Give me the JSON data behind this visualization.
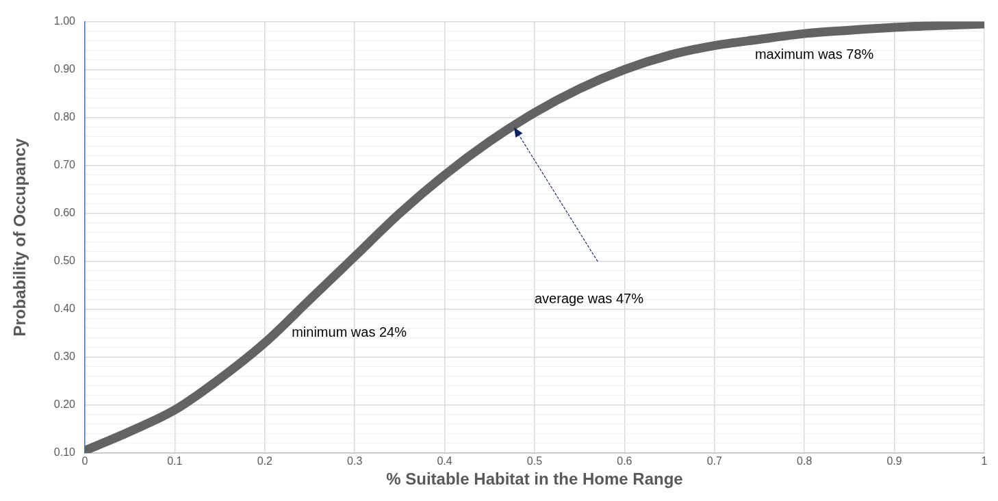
{
  "chart_data": {
    "type": "line",
    "xlabel": "% Suitable Habitat in the Home Range",
    "ylabel": "Probability of Occupancy",
    "x": [
      0,
      0.05,
      0.1,
      0.15,
      0.2,
      0.25,
      0.3,
      0.35,
      0.4,
      0.45,
      0.5,
      0.55,
      0.6,
      0.65,
      0.7,
      0.75,
      0.8,
      0.85,
      0.9,
      0.95,
      1
    ],
    "series": [
      {
        "color": "#636363",
        "values": [
          0.105,
          0.145,
          0.19,
          0.255,
          0.33,
          0.42,
          0.51,
          0.6,
          0.68,
          0.75,
          0.81,
          0.86,
          0.9,
          0.93,
          0.95,
          0.963,
          0.975,
          0.982,
          0.988,
          0.992,
          0.995
        ]
      }
    ],
    "xlim": [
      0,
      1
    ],
    "xticks": [
      0,
      0.1,
      0.2,
      0.3,
      0.4,
      0.5,
      0.6,
      0.7,
      0.8,
      0.9,
      1
    ],
    "ylim": [
      0.1,
      1
    ],
    "yticks": [
      {
        "value": 0.1,
        "label": "0.10"
      },
      {
        "value": 0.12,
        "label": null
      },
      {
        "value": 0.14,
        "label": null
      },
      {
        "value": 0.16,
        "label": null
      },
      {
        "value": 0.18,
        "label": null
      },
      {
        "value": 0.2,
        "label": "0.20"
      },
      {
        "value": 0.22,
        "label": null
      },
      {
        "value": 0.24,
        "label": null
      },
      {
        "value": 0.26,
        "label": null
      },
      {
        "value": 0.28,
        "label": null
      },
      {
        "value": 0.3,
        "label": "0.30"
      },
      {
        "value": 0.32,
        "label": null
      },
      {
        "value": 0.34,
        "label": null
      },
      {
        "value": 0.36,
        "label": null
      },
      {
        "value": 0.38,
        "label": null
      },
      {
        "value": 0.4,
        "label": "0.40"
      },
      {
        "value": 0.42,
        "label": null
      },
      {
        "value": 0.44,
        "label": null
      },
      {
        "value": 0.46,
        "label": null
      },
      {
        "value": 0.48,
        "label": null
      },
      {
        "value": 0.5,
        "label": "0.50"
      },
      {
        "value": 0.52,
        "label": null
      },
      {
        "value": 0.54,
        "label": null
      },
      {
        "value": 0.56,
        "label": null
      },
      {
        "value": 0.58,
        "label": null
      },
      {
        "value": 0.6,
        "label": "0.60"
      },
      {
        "value": 0.62,
        "label": null
      },
      {
        "value": 0.64,
        "label": null
      },
      {
        "value": 0.66,
        "label": null
      },
      {
        "value": 0.68,
        "label": null
      },
      {
        "value": 0.7,
        "label": "0.70"
      },
      {
        "value": 0.72,
        "label": null
      },
      {
        "value": 0.74,
        "label": null
      },
      {
        "value": 0.76,
        "label": null
      },
      {
        "value": 0.78,
        "label": null
      },
      {
        "value": 0.8,
        "label": "0.80"
      },
      {
        "value": 0.82,
        "label": null
      },
      {
        "value": 0.84,
        "label": null
      },
      {
        "value": 0.86,
        "label": null
      },
      {
        "value": 0.88,
        "label": null
      },
      {
        "value": 0.9,
        "label": "0.90"
      },
      {
        "value": 0.92,
        "label": null
      },
      {
        "value": 0.94,
        "label": null
      },
      {
        "value": 0.96,
        "label": null
      },
      {
        "value": 0.98,
        "label": null
      },
      {
        "value": 1,
        "label": "1.00"
      }
    ],
    "grid": true,
    "legend": false,
    "marker": "none",
    "line_style": "solid",
    "annotations": [
      "maximum was 78%",
      "average was 47%",
      "minimum was 24%"
    ]
  }
}
